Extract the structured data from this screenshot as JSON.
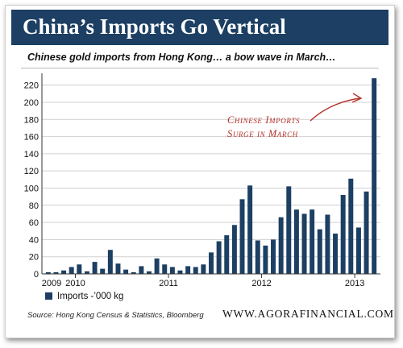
{
  "title": "China’s Imports Go Vertical",
  "subtitle": "Chinese gold imports from Hong Kong… a bow wave in March…",
  "legend_label": "Imports -’000 kg",
  "source": "Source: Hong Kong Census & Statistics, Bloomberg",
  "site": "WWW.AGORAFINANCIAL.COM",
  "annotation": [
    "Chinese Imports",
    "Surge in March"
  ],
  "colors": {
    "banner": "#1c3f63",
    "bars": "#1c3f63",
    "annotation": "#b5312a",
    "grid": "#d0d0d0"
  },
  "chart_data": {
    "type": "bar",
    "series": [
      {
        "name": "Imports -’000 kg",
        "values": [
          2,
          2,
          4,
          8,
          11,
          3,
          14,
          6,
          28,
          12,
          5,
          2,
          9,
          3,
          18,
          11,
          8,
          4,
          9,
          8,
          11,
          25,
          38,
          45,
          57,
          87,
          103,
          39,
          33,
          40,
          66,
          102,
          75,
          70,
          75,
          52,
          69,
          47,
          92,
          111,
          54,
          96,
          228
        ]
      }
    ],
    "x_tick_labels": [
      "2009",
      "2010",
      "2011",
      "2012",
      "2013"
    ],
    "y_ticks": [
      0,
      20,
      40,
      60,
      80,
      100,
      120,
      140,
      160,
      180,
      200,
      220
    ],
    "ylim": [
      0,
      230
    ],
    "grid": true,
    "legend_position": "bottom-left"
  }
}
